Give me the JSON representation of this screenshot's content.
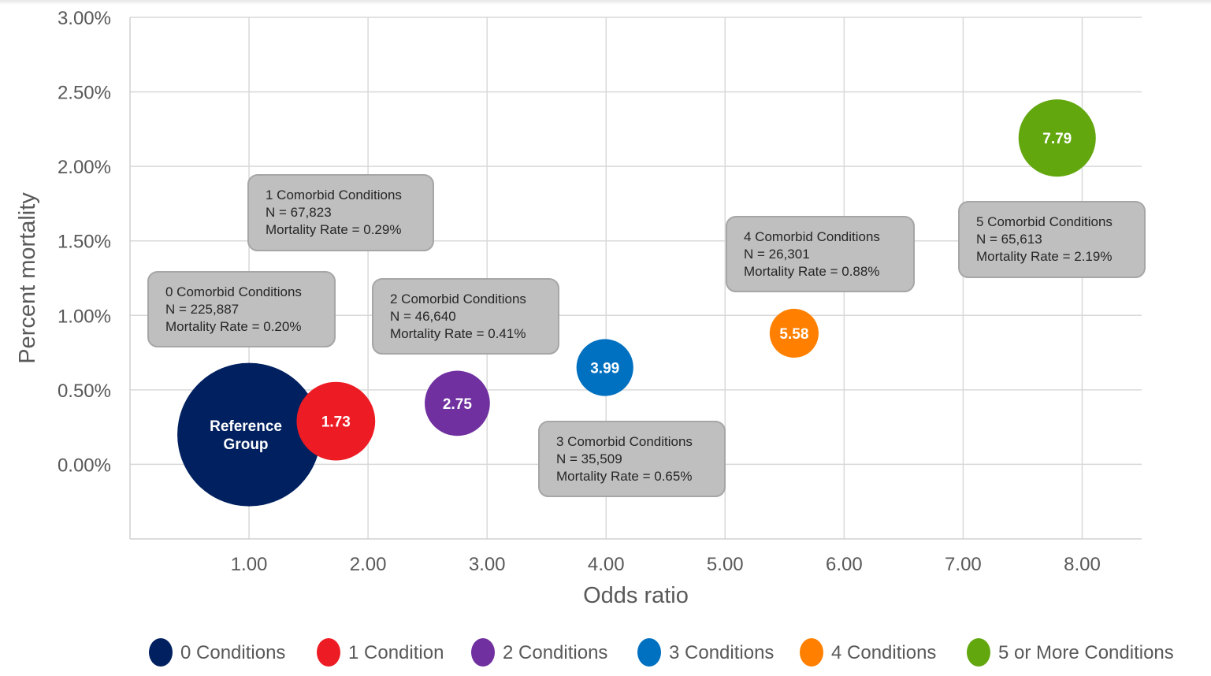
{
  "chart_data": {
    "type": "scatter",
    "subtype": "bubble",
    "title": "",
    "xlabel": "Odds ratio",
    "ylabel": "Percent mortality",
    "xlim": [
      0.0,
      8.5
    ],
    "ylim": [
      -0.5,
      3.0
    ],
    "x_ticks": [
      1,
      2,
      3,
      4,
      5,
      6,
      7,
      8
    ],
    "x_tick_labels": [
      "1.00",
      "2.00",
      "3.00",
      "4.00",
      "5.00",
      "6.00",
      "7.00",
      "8.00"
    ],
    "y_ticks": [
      0,
      0.5,
      1.0,
      1.5,
      2.0,
      2.5,
      3.0
    ],
    "y_tick_labels": [
      "0.00%",
      "0.50%",
      "1.00%",
      "1.50%",
      "2.00%",
      "2.50%",
      "3.00%"
    ],
    "grid": true,
    "legend_position": "bottom",
    "bubble_size_metric": "N",
    "series": [
      {
        "name": "0 Conditions",
        "color": "#002060",
        "odds_ratio": 1.0,
        "mortality_pct": 0.2,
        "n": 225887,
        "bubble_label": [
          "Reference",
          "Group"
        ],
        "callout": [
          "0 Comorbid Conditions",
          "N = 225,887",
          "Mortality Rate = 0.20%"
        ]
      },
      {
        "name": "1 Condition",
        "color": "#ED1C24",
        "odds_ratio": 1.73,
        "mortality_pct": 0.29,
        "n": 67823,
        "bubble_label": [
          "1.73"
        ],
        "callout": [
          "1 Comorbid Conditions",
          "N = 67,823",
          "Mortality Rate = 0.29%"
        ]
      },
      {
        "name": "2 Conditions",
        "color": "#7030A0",
        "odds_ratio": 2.75,
        "mortality_pct": 0.41,
        "n": 46640,
        "bubble_label": [
          "2.75"
        ],
        "callout": [
          "2 Comorbid Conditions",
          "N = 46,640",
          "Mortality Rate = 0.41%"
        ]
      },
      {
        "name": "3 Conditions",
        "color": "#0070C0",
        "odds_ratio": 3.99,
        "mortality_pct": 0.65,
        "n": 35509,
        "bubble_label": [
          "3.99"
        ],
        "callout": [
          "3 Comorbid Conditions",
          "N = 35,509",
          "Mortality Rate = 0.65%"
        ]
      },
      {
        "name": "4 Conditions",
        "color": "#FF8000",
        "odds_ratio": 5.58,
        "mortality_pct": 0.88,
        "n": 26301,
        "bubble_label": [
          "5.58"
        ],
        "callout": [
          "4 Comorbid Conditions",
          "N = 26,301",
          "Mortality Rate = 0.88%"
        ]
      },
      {
        "name": "5 or More Conditions",
        "color": "#63A70F",
        "odds_ratio": 7.79,
        "mortality_pct": 2.19,
        "n": 65613,
        "bubble_label": [
          "7.79"
        ],
        "callout": [
          "5 Comorbid Conditions",
          "N = 65,613",
          "Mortality Rate = 2.19%"
        ]
      }
    ],
    "legend": [
      {
        "label": "0 Conditions",
        "color": "#002060"
      },
      {
        "label": "1 Condition",
        "color": "#ED1C24"
      },
      {
        "label": "2 Conditions",
        "color": "#7030A0"
      },
      {
        "label": "3 Conditions",
        "color": "#0070C0"
      },
      {
        "label": "4 Conditions",
        "color": "#FF8000"
      },
      {
        "label": "5 or More Conditions",
        "color": "#63A70F"
      }
    ]
  }
}
